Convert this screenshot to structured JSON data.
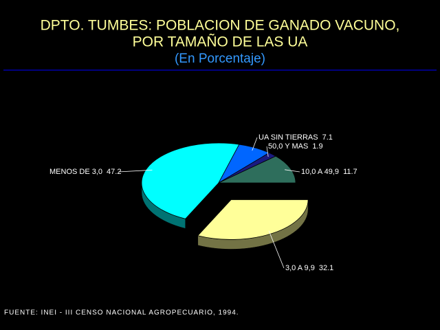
{
  "chart_data": {
    "type": "pie",
    "title": [
      "DPTO. TUMBES: POBLACION DE GANADO VACUNO,",
      "POR TAMAÑO DE LAS UA"
    ],
    "subtitle": "(En Porcentaje)",
    "categories": [
      "3,0 A 9,9",
      "MENOS DE 3,0",
      "UA SIN TIERRAS",
      "50,0 Y MAS",
      "10,0 A 49,9"
    ],
    "values": [
      32.1,
      47.2,
      7.1,
      1.9,
      11.7
    ],
    "colors": [
      "#ffff99",
      "#00ffff",
      "#0066ff",
      "#1a1a80",
      "#2e6e5c"
    ],
    "explode": [
      true,
      false,
      false,
      false,
      false
    ],
    "source": "FUENTE: INEI - III CENSO NACIONAL AGROPECUARIO, 1994."
  }
}
